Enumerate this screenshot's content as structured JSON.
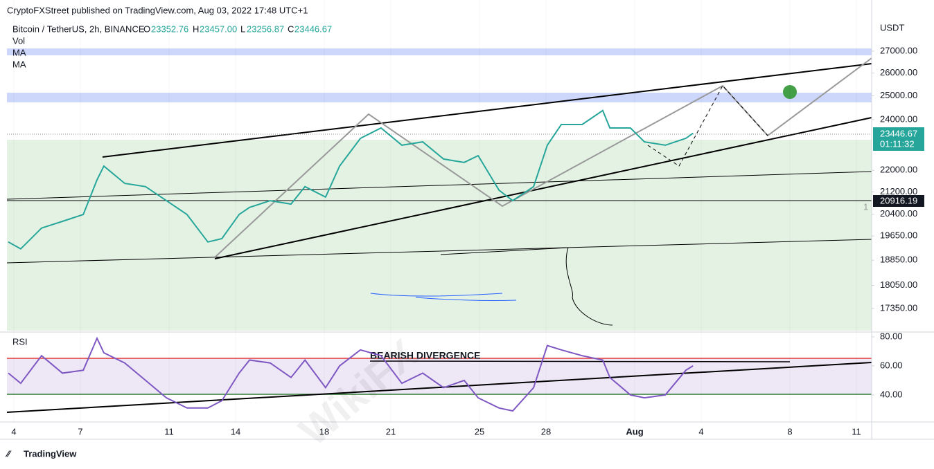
{
  "header": {
    "published": "CryptoFXStreet published on TradingView.com, Aug 03, 2022 17:48 UTC+1",
    "brand": "TradingView",
    "watermark": "WikiFX"
  },
  "legend": {
    "symbol": "Bitcoin / TetherUS, 2h, BINANCE",
    "o_label": "O",
    "open": "23352.76",
    "h_label": "H",
    "high": "23457.00",
    "l_label": "L",
    "low": "23256.87",
    "c_label": "C",
    "close": "23446.67",
    "vol": "Vol",
    "ma1": "MA",
    "ma2": "MA",
    "rsi": "RSI"
  },
  "labels": {
    "currency": "USDT",
    "last_price": "23446.67",
    "countdown": "01:11:32",
    "level_price": "20916.19",
    "marker": "1",
    "annotation": "BEARISH DIVERGENCE"
  },
  "chart_data": [
    {
      "type": "line",
      "name": "price",
      "log_scale": true,
      "color": "#26a69a",
      "x": [
        2.75,
        3.31,
        4.25,
        5.19,
        6.13,
        6.75,
        7.06,
        8,
        8.94,
        9.88,
        10.81,
        11.75,
        12.38,
        13.16,
        13.63,
        14.56,
        15.5,
        16.13,
        17.06,
        17.69,
        18.63,
        19.56,
        20.5,
        21.44,
        22.38,
        23.31,
        23.94,
        24.88,
        25.5,
        26.44,
        27.06,
        27.69,
        28.63,
        29.56,
        29.88,
        30.81,
        31.44,
        32.38,
        33.31,
        33.63
      ],
      "values": [
        19450,
        19220,
        19920,
        20150,
        20390,
        21640,
        22160,
        21510,
        21390,
        20880,
        20390,
        19450,
        19560,
        20390,
        20640,
        20880,
        20760,
        21390,
        21010,
        22160,
        23240,
        23660,
        22970,
        23100,
        22430,
        22300,
        22560,
        21260,
        20880,
        21390,
        22970,
        23800,
        23800,
        24380,
        23660,
        23660,
        23100,
        22970,
        23240,
        23446.67
      ],
      "xlim": [
        2.6875,
        41.6875
      ],
      "ylim": [
        16700,
        29480
      ],
      "yticks": [
        {
          "value": 27000,
          "label": "27000.00"
        },
        {
          "value": 26000,
          "label": "26000.00"
        },
        {
          "value": 25000,
          "label": "25000.00"
        },
        {
          "value": 24000,
          "label": "24000.00"
        },
        {
          "value": 22000,
          "label": "22000.00"
        },
        {
          "value": 21200,
          "label": "21200.00"
        },
        {
          "value": 20400,
          "label": "20400.00"
        },
        {
          "value": 19650,
          "label": "19650.00"
        },
        {
          "value": 18850,
          "label": "18850.00"
        },
        {
          "value": 18050,
          "label": "18050.00"
        },
        {
          "value": 17350,
          "label": "17350.00"
        }
      ],
      "xticks": [
        {
          "value": 3,
          "label": "4"
        },
        {
          "value": 6,
          "label": "7"
        },
        {
          "value": 10,
          "label": "11"
        },
        {
          "value": 13,
          "label": "14"
        },
        {
          "value": 17,
          "label": "18"
        },
        {
          "value": 20,
          "label": "21"
        },
        {
          "value": 24,
          "label": "25"
        },
        {
          "value": 27,
          "label": "28"
        },
        {
          "value": 31,
          "label": "Aug"
        },
        {
          "value": 34,
          "label": "4"
        },
        {
          "value": 38,
          "label": "8"
        },
        {
          "value": 41,
          "label": "11"
        }
      ],
      "grid": true
    },
    {
      "type": "line",
      "name": "RSI",
      "color": "#7e57c2",
      "x": [
        2.75,
        3.31,
        4.25,
        5.19,
        6.13,
        6.75,
        7.06,
        8,
        8.94,
        9.88,
        10.81,
        11.75,
        12.38,
        13.16,
        13.63,
        14.56,
        15.5,
        16.13,
        17.06,
        17.69,
        18.63,
        19.56,
        20.5,
        21.44,
        22.38,
        23.31,
        23.94,
        24.88,
        25.5,
        26.44,
        27.06,
        27.69,
        28.63,
        29.56,
        29.88,
        30.81,
        31.44,
        32.38,
        33.31,
        33.63
      ],
      "values": [
        55,
        48,
        67,
        55,
        57,
        79,
        69,
        62,
        50,
        38,
        31,
        31,
        36,
        55,
        64,
        62,
        52,
        64,
        45,
        60,
        71,
        67,
        48,
        55,
        45,
        50,
        38,
        31,
        29,
        45,
        74,
        71,
        67,
        64,
        52,
        40,
        38,
        40,
        57,
        60
      ],
      "xlim": [
        2.6875,
        41.6875
      ],
      "ylim": [
        21.4,
        83.3
      ],
      "yticks": [
        {
          "value": 80,
          "label": "80.00"
        },
        {
          "value": 60,
          "label": "60.00"
        },
        {
          "value": 40,
          "label": "40.00"
        }
      ]
    }
  ]
}
